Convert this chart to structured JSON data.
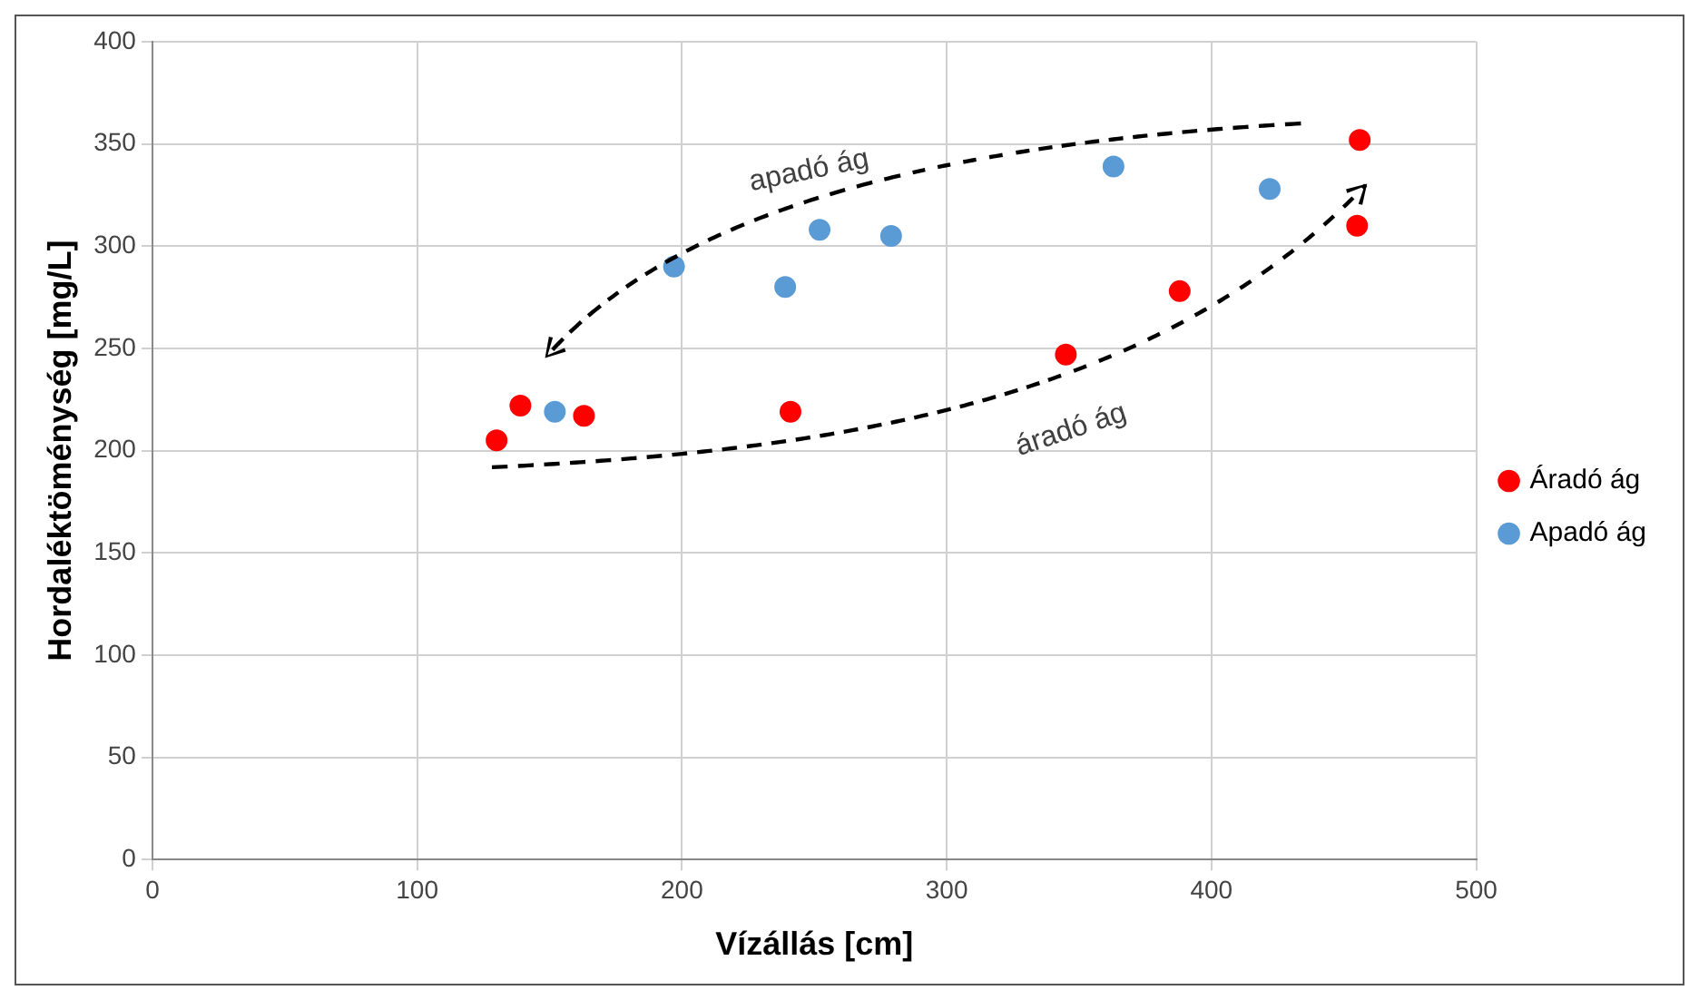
{
  "chart_data": {
    "type": "scatter",
    "xlabel": "Vízállás [cm]",
    "ylabel": "Hordaléktöménység [mg/L]",
    "series": [
      {
        "name": "Áradó ág",
        "color": "#ff0000",
        "x": [
          130,
          139,
          163,
          241,
          345,
          388,
          456,
          455
        ],
        "values": [
          205,
          222,
          217,
          219,
          247,
          278,
          352,
          310
        ]
      },
      {
        "name": "Apadó ág",
        "color": "#5b9bd5",
        "x": [
          152,
          197,
          239,
          252,
          279,
          363,
          422
        ],
        "values": [
          219,
          290,
          280,
          308,
          305,
          339,
          328
        ]
      }
    ],
    "annotations": [
      "apadó ág",
      "áradó ág"
    ],
    "xlim": [
      0,
      500
    ],
    "xticks": [
      0,
      100,
      200,
      300,
      400,
      500
    ],
    "ylim": [
      0,
      400
    ],
    "yticks": [
      0,
      50,
      100,
      150,
      200,
      250,
      300,
      350,
      400
    ],
    "grid": true,
    "legend": "right",
    "marker": "circle"
  }
}
